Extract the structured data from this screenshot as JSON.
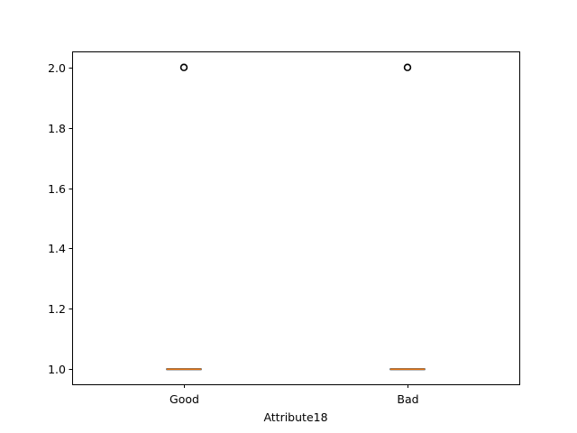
{
  "chart_data": {
    "type": "box",
    "title": "",
    "xlabel": "Attribute18",
    "ylabel": "",
    "categories": [
      "Good",
      "Bad"
    ],
    "ylim": [
      0.95,
      2.05
    ],
    "yticks": [
      1.0,
      1.2,
      1.4,
      1.6,
      1.8,
      2.0
    ],
    "ytick_labels": [
      "1.0",
      "1.2",
      "1.4",
      "1.6",
      "1.8",
      "2.0"
    ],
    "series": [
      {
        "category": "Good",
        "q1": 1.0,
        "median": 1.0,
        "q3": 1.0,
        "whisker_low": 1.0,
        "whisker_high": 1.0,
        "outliers": [
          2.0
        ]
      },
      {
        "category": "Bad",
        "q1": 1.0,
        "median": 1.0,
        "q3": 1.0,
        "whisker_low": 1.0,
        "whisker_high": 1.0,
        "outliers": [
          2.0
        ]
      }
    ],
    "colors": {
      "box": "#000000",
      "median": "#ff7f0e",
      "flier": "#000000"
    },
    "grid": false,
    "legend": "none"
  }
}
